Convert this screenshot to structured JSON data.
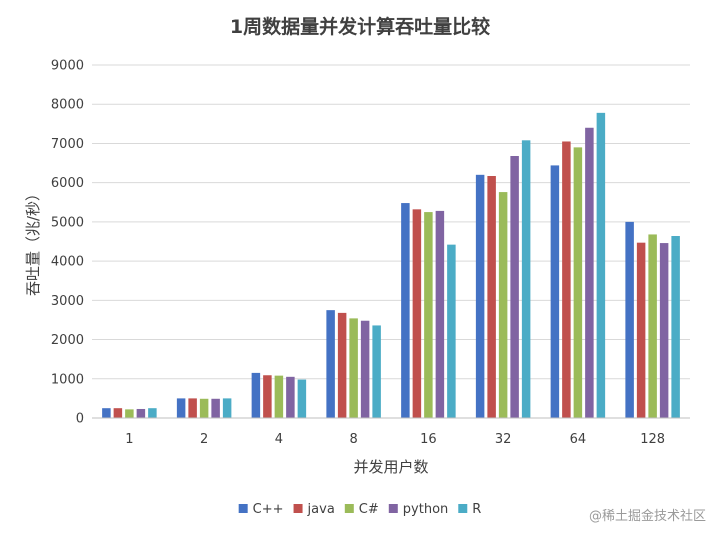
{
  "chart_data": {
    "type": "bar",
    "title": "1周数据量并发计算吞吐量比较",
    "xlabel": "并发用户数",
    "ylabel": "吞吐量（兆/秒）",
    "ylim": [
      0,
      9000
    ],
    "yticks": [
      "0",
      "1000",
      "2000",
      "3000",
      "4000",
      "5000",
      "6000",
      "7000",
      "8000",
      "9000"
    ],
    "categories": [
      "1",
      "2",
      "4",
      "8",
      "16",
      "32",
      "64",
      "128"
    ],
    "series": [
      {
        "name": "C++",
        "color": "#4472c4",
        "values": [
          250,
          500,
          1150,
          2750,
          5480,
          6200,
          6440,
          5000
        ]
      },
      {
        "name": "java",
        "color": "#c0504d",
        "values": [
          250,
          500,
          1090,
          2680,
          5320,
          6170,
          7050,
          4470
        ]
      },
      {
        "name": "C#",
        "color": "#9bbb59",
        "values": [
          220,
          490,
          1080,
          2540,
          5250,
          5760,
          6900,
          4680
        ]
      },
      {
        "name": "python",
        "color": "#8064a2",
        "values": [
          230,
          490,
          1050,
          2480,
          5280,
          6680,
          7400,
          4460
        ]
      },
      {
        "name": "R",
        "color": "#4bacc6",
        "values": [
          250,
          500,
          980,
          2360,
          4420,
          7080,
          7780,
          4640
        ]
      }
    ],
    "grid": true,
    "legend_position": "bottom"
  },
  "watermark": "@稀土掘金技术社区"
}
